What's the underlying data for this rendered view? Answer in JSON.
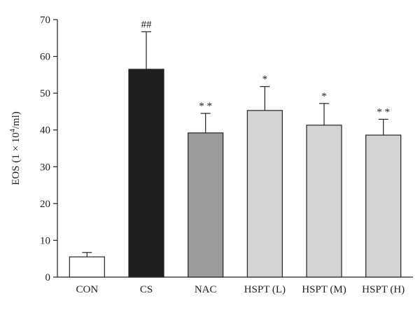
{
  "chart_data": {
    "type": "bar",
    "title": "",
    "xlabel": "",
    "ylabel_parts": {
      "pre": "EOS (1 × 10",
      "sup": "4",
      "post": "/ml)"
    },
    "ylim": [
      0,
      70
    ],
    "yticks": [
      0,
      10,
      20,
      30,
      40,
      50,
      60,
      70
    ],
    "categories": [
      "CON",
      "CS",
      "NAC",
      "HSPT (L)",
      "HSPT (M)",
      "HSPT (H)"
    ],
    "values": [
      5.5,
      56.5,
      39.2,
      45.3,
      41.3,
      38.6
    ],
    "errors": [
      1.2,
      10.2,
      5.3,
      6.5,
      5.9,
      4.3
    ],
    "annotations": [
      "",
      "##",
      "* *",
      "*",
      "*",
      "* *"
    ],
    "colors": [
      "#ffffff",
      "#1e1e1e",
      "#9b9b9b",
      "#d4d4d4",
      "#d4d4d4",
      "#d4d4d4"
    ],
    "grid": false
  }
}
